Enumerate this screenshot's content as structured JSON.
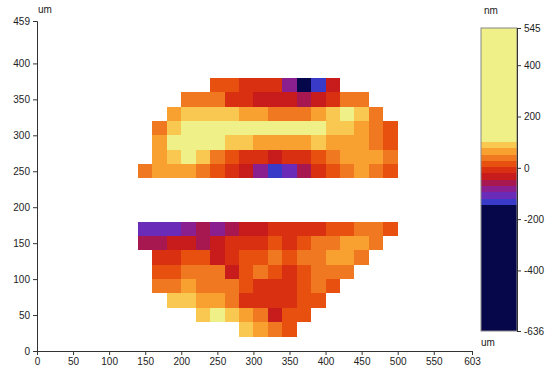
{
  "chart_data": {
    "type": "heatmap",
    "x_label": "um",
    "y_label": "um",
    "xlim": [
      0,
      603
    ],
    "ylim": [
      0,
      459
    ],
    "xticks": [
      0,
      50,
      100,
      150,
      200,
      250,
      300,
      350,
      400,
      450,
      500,
      550,
      603
    ],
    "yticks": [
      0,
      50,
      100,
      150,
      200,
      250,
      300,
      350,
      400,
      459
    ],
    "x": [
      150,
      170,
      190,
      210,
      230,
      250,
      270,
      290,
      310,
      330,
      350,
      370,
      390,
      410,
      430,
      450,
      470,
      490
    ],
    "y": [
      30,
      50,
      70,
      90,
      110,
      130,
      150,
      170,
      190,
      210,
      230,
      250,
      270,
      290,
      310,
      330,
      350,
      370
    ],
    "values": [
      [
        null,
        null,
        null,
        null,
        null,
        null,
        null,
        80,
        60,
        40,
        20,
        null,
        null,
        null,
        null,
        null,
        null,
        null
      ],
      [
        null,
        null,
        null,
        null,
        100,
        110,
        80,
        60,
        30,
        -30,
        10,
        20,
        null,
        null,
        null,
        null,
        null,
        null
      ],
      [
        null,
        null,
        80,
        90,
        70,
        60,
        40,
        -20,
        -10,
        -20,
        0,
        20,
        20,
        null,
        null,
        null,
        null,
        null
      ],
      [
        null,
        40,
        50,
        60,
        50,
        40,
        30,
        20,
        0,
        -20,
        -10,
        10,
        30,
        20,
        null,
        null,
        null,
        null
      ],
      [
        null,
        10,
        20,
        30,
        40,
        30,
        -30,
        20,
        30,
        10,
        0,
        20,
        40,
        50,
        40,
        null,
        null,
        null
      ],
      [
        null,
        -20,
        0,
        10,
        10,
        -40,
        -10,
        10,
        20,
        30,
        20,
        30,
        50,
        60,
        70,
        50,
        null,
        null
      ],
      [
        -60,
        -50,
        -40,
        -30,
        -60,
        -30,
        -20,
        -10,
        0,
        10,
        0,
        20,
        30,
        50,
        60,
        70,
        40,
        null
      ],
      [
        -120,
        -100,
        -110,
        -90,
        -70,
        -80,
        -60,
        -40,
        -30,
        -20,
        -20,
        -10,
        0,
        10,
        20,
        30,
        40,
        20
      ],
      [
        null,
        null,
        null,
        null,
        null,
        null,
        null,
        null,
        null,
        null,
        null,
        null,
        null,
        null,
        null,
        null,
        null,
        null
      ],
      [
        null,
        null,
        null,
        null,
        null,
        null,
        null,
        null,
        null,
        null,
        null,
        null,
        null,
        null,
        null,
        null,
        null,
        null
      ],
      [
        null,
        null,
        null,
        null,
        null,
        null,
        null,
        null,
        null,
        null,
        null,
        null,
        null,
        null,
        null,
        null,
        null,
        null
      ],
      [
        40,
        60,
        70,
        60,
        40,
        20,
        -10,
        -40,
        -80,
        -130,
        -100,
        -60,
        -20,
        10,
        40,
        60,
        50,
        20
      ],
      [
        null,
        70,
        90,
        110,
        80,
        50,
        20,
        0,
        -20,
        -30,
        -20,
        0,
        20,
        40,
        60,
        70,
        60,
        30
      ],
      [
        null,
        60,
        110,
        130,
        120,
        110,
        90,
        80,
        70,
        60,
        60,
        70,
        80,
        70,
        70,
        60,
        40,
        10
      ],
      [
        null,
        40,
        90,
        110,
        120,
        130,
        140,
        150,
        140,
        130,
        120,
        110,
        110,
        100,
        90,
        70,
        50,
        20
      ],
      [
        null,
        null,
        60,
        80,
        90,
        90,
        80,
        70,
        60,
        50,
        40,
        50,
        70,
        100,
        110,
        80,
        40,
        null
      ],
      [
        null,
        null,
        null,
        40,
        50,
        30,
        0,
        -20,
        -30,
        -30,
        -40,
        -60,
        -40,
        -10,
        40,
        30,
        null,
        null
      ],
      [
        null,
        null,
        null,
        null,
        null,
        20,
        10,
        0,
        -10,
        -20,
        -80,
        -150,
        -130,
        -30,
        null,
        null,
        null,
        null
      ]
    ],
    "colorbar": {
      "label": "nm",
      "range": [
        -636,
        545
      ],
      "ticks": [
        545,
        400,
        200,
        0,
        -200,
        -400,
        -636
      ]
    }
  }
}
